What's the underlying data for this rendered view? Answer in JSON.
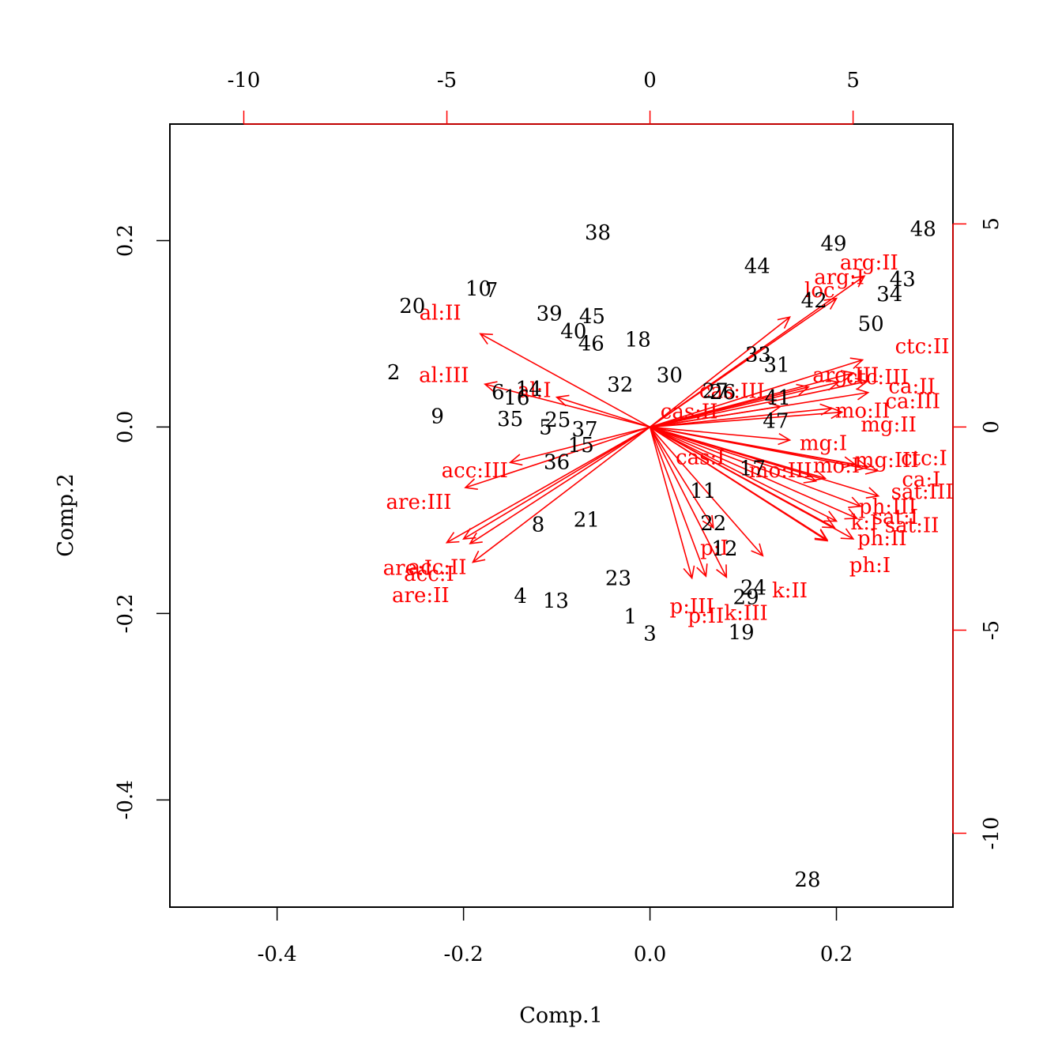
{
  "chart_data": {
    "type": "scatter",
    "subtype": "biplot",
    "xlabel": "Comp.1",
    "ylabel": "Comp.2",
    "xlim": [
      -0.515,
      0.325
    ],
    "ylim": [
      -0.515,
      0.325
    ],
    "x_ticks": [
      -0.4,
      -0.2,
      0.0,
      0.2
    ],
    "x_tick_labels": [
      "-0.4",
      "-0.2",
      "0.0",
      "0.2"
    ],
    "y_ticks": [
      -0.4,
      -0.2,
      0.0,
      0.2
    ],
    "y_tick_labels": [
      "-0.4",
      "-0.2",
      "0.0",
      "0.2"
    ],
    "top_axis": {
      "ticks": [
        -10,
        -5,
        0,
        5
      ],
      "tick_labels": [
        "-10",
        "-5",
        "0",
        "5"
      ],
      "units_per_primary": 22.95
    },
    "right_axis": {
      "ticks": [
        -10,
        -5,
        0,
        5
      ],
      "tick_labels": [
        "-10",
        "-5",
        "0",
        "5"
      ],
      "units_per_primary": 22.95
    },
    "colors": {
      "observations": "#000000",
      "variables": "#ff0000"
    },
    "observations": [
      {
        "label": "1",
        "x": -0.021,
        "y": -0.204
      },
      {
        "label": "2",
        "x": -0.275,
        "y": 0.058
      },
      {
        "label": "3",
        "x": 0.0,
        "y": -0.222
      },
      {
        "label": "4",
        "x": -0.139,
        "y": -0.182
      },
      {
        "label": "5",
        "x": -0.112,
        "y": -0.001
      },
      {
        "label": "6",
        "x": -0.163,
        "y": 0.037
      },
      {
        "label": "7",
        "x": -0.17,
        "y": 0.146
      },
      {
        "label": "8",
        "x": -0.12,
        "y": -0.105
      },
      {
        "label": "9",
        "x": -0.228,
        "y": 0.011
      },
      {
        "label": "10",
        "x": -0.184,
        "y": 0.148
      },
      {
        "label": "11",
        "x": 0.057,
        "y": -0.069
      },
      {
        "label": "12",
        "x": 0.08,
        "y": -0.131
      },
      {
        "label": "13",
        "x": -0.101,
        "y": -0.187
      },
      {
        "label": "14",
        "x": -0.13,
        "y": 0.04
      },
      {
        "label": "15",
        "x": -0.074,
        "y": -0.02
      },
      {
        "label": "16",
        "x": -0.143,
        "y": 0.031
      },
      {
        "label": "17",
        "x": 0.11,
        "y": -0.045
      },
      {
        "label": "18",
        "x": -0.013,
        "y": 0.093
      },
      {
        "label": "19",
        "x": 0.098,
        "y": -0.221
      },
      {
        "label": "20",
        "x": -0.255,
        "y": 0.129
      },
      {
        "label": "21",
        "x": -0.068,
        "y": -0.1
      },
      {
        "label": "22",
        "x": 0.068,
        "y": -0.104
      },
      {
        "label": "23",
        "x": -0.034,
        "y": -0.163
      },
      {
        "label": "24",
        "x": 0.111,
        "y": -0.173
      },
      {
        "label": "25",
        "x": -0.099,
        "y": 0.007
      },
      {
        "label": "26",
        "x": 0.078,
        "y": 0.037
      },
      {
        "label": "27",
        "x": 0.07,
        "y": 0.038
      },
      {
        "label": "28",
        "x": 0.169,
        "y": -0.486
      },
      {
        "label": "29",
        "x": 0.103,
        "y": -0.183
      },
      {
        "label": "30",
        "x": 0.021,
        "y": 0.055
      },
      {
        "label": "31",
        "x": 0.136,
        "y": 0.066
      },
      {
        "label": "32",
        "x": -0.032,
        "y": 0.045
      },
      {
        "label": "33",
        "x": 0.116,
        "y": 0.077
      },
      {
        "label": "34",
        "x": 0.257,
        "y": 0.142
      },
      {
        "label": "35",
        "x": -0.15,
        "y": 0.008
      },
      {
        "label": "36",
        "x": -0.1,
        "y": -0.038
      },
      {
        "label": "37",
        "x": -0.07,
        "y": -0.003
      },
      {
        "label": "38",
        "x": -0.056,
        "y": 0.208
      },
      {
        "label": "39",
        "x": -0.108,
        "y": 0.121
      },
      {
        "label": "40",
        "x": -0.082,
        "y": 0.102
      },
      {
        "label": "41",
        "x": 0.137,
        "y": 0.031
      },
      {
        "label": "42",
        "x": 0.176,
        "y": 0.135
      },
      {
        "label": "43",
        "x": 0.271,
        "y": 0.158
      },
      {
        "label": "44",
        "x": 0.115,
        "y": 0.172
      },
      {
        "label": "45",
        "x": -0.062,
        "y": 0.118
      },
      {
        "label": "46",
        "x": -0.063,
        "y": 0.089
      },
      {
        "label": "47",
        "x": 0.135,
        "y": 0.006
      },
      {
        "label": "48",
        "x": 0.293,
        "y": 0.212
      },
      {
        "label": "49",
        "x": 0.197,
        "y": 0.196
      },
      {
        "label": "50",
        "x": 0.237,
        "y": 0.11
      }
    ],
    "variables": [
      {
        "label": "al:II",
        "x": -0.182,
        "y": 0.1,
        "lx": -0.225,
        "ly": 0.122
      },
      {
        "label": "al:III",
        "x": -0.177,
        "y": 0.046,
        "lx": -0.221,
        "ly": 0.055
      },
      {
        "label": "al:I",
        "x": -0.1,
        "y": 0.032,
        "lx": -0.124,
        "ly": 0.039
      },
      {
        "label": "acc:III",
        "x": -0.15,
        "y": -0.038,
        "lx": -0.188,
        "ly": -0.047
      },
      {
        "label": "are:III",
        "x": -0.198,
        "y": -0.065,
        "lx": -0.248,
        "ly": -0.081
      },
      {
        "label": "acc:II",
        "x": -0.2,
        "y": -0.12,
        "lx": -0.228,
        "ly": -0.151
      },
      {
        "label": "are:I",
        "x": -0.218,
        "y": -0.124,
        "lx": -0.26,
        "ly": -0.152
      },
      {
        "label": "acc:I",
        "x": -0.193,
        "y": -0.125,
        "lx": -0.237,
        "ly": -0.158
      },
      {
        "label": "are:II",
        "x": -0.19,
        "y": -0.145,
        "lx": -0.246,
        "ly": -0.181
      },
      {
        "label": "arg:II",
        "x": 0.23,
        "y": 0.162,
        "lx": 0.235,
        "ly": 0.176
      },
      {
        "label": "arg:I",
        "x": 0.2,
        "y": 0.138,
        "lx": 0.203,
        "ly": 0.16
      },
      {
        "label": "loc",
        "x": 0.15,
        "y": 0.118,
        "lx": 0.182,
        "ly": 0.146
      },
      {
        "label": "ctc:II",
        "x": 0.228,
        "y": 0.072,
        "lx": 0.292,
        "ly": 0.086
      },
      {
        "label": "arg:III",
        "x": 0.202,
        "y": 0.048,
        "lx": 0.21,
        "ly": 0.055
      },
      {
        "label": "ctc:III",
        "x": 0.218,
        "y": 0.058,
        "lx": 0.244,
        "ly": 0.053
      },
      {
        "label": "ca:II",
        "x": 0.233,
        "y": 0.049,
        "lx": 0.281,
        "ly": 0.043
      },
      {
        "label": "ca:III",
        "x": 0.234,
        "y": 0.037,
        "lx": 0.282,
        "ly": 0.027
      },
      {
        "label": "mo:II",
        "x": 0.195,
        "y": 0.02,
        "lx": 0.228,
        "ly": 0.017
      },
      {
        "label": "mg:II",
        "x": 0.206,
        "y": 0.016,
        "lx": 0.256,
        "ly": 0.002
      },
      {
        "label": "cas:III",
        "x": 0.17,
        "y": 0.043,
        "lx": 0.088,
        "ly": 0.038
      },
      {
        "label": "cas:II",
        "x": 0.14,
        "y": 0.022,
        "lx": 0.042,
        "ly": 0.016
      },
      {
        "label": "mg:I",
        "x": 0.15,
        "y": -0.014,
        "lx": 0.186,
        "ly": -0.018
      },
      {
        "label": "mo:I",
        "x": 0.22,
        "y": -0.04,
        "lx": 0.2,
        "ly": -0.042
      },
      {
        "label": "mg:III",
        "x": 0.234,
        "y": -0.043,
        "lx": 0.254,
        "ly": -0.036
      },
      {
        "label": "ctc:I",
        "x": 0.244,
        "y": -0.047,
        "lx": 0.294,
        "ly": -0.034
      },
      {
        "label": "cas:I",
        "x": 0.188,
        "y": -0.055,
        "lx": 0.054,
        "ly": -0.033
      },
      {
        "label": "mo:III",
        "x": 0.178,
        "y": -0.058,
        "lx": 0.14,
        "ly": -0.047
      },
      {
        "label": "ca:I",
        "x": 0.245,
        "y": -0.074,
        "lx": 0.291,
        "ly": -0.057
      },
      {
        "label": "sat:III",
        "x": 0.226,
        "y": -0.085,
        "lx": 0.292,
        "ly": -0.07
      },
      {
        "label": "ph:III",
        "x": 0.222,
        "y": -0.098,
        "lx": 0.255,
        "ly": -0.086
      },
      {
        "label": "sat:I",
        "x": 0.2,
        "y": -0.101,
        "lx": 0.263,
        "ly": -0.097
      },
      {
        "label": "k:I",
        "x": 0.198,
        "y": -0.108,
        "lx": 0.23,
        "ly": -0.103
      },
      {
        "label": "sat:II",
        "x": 0.218,
        "y": -0.12,
        "lx": 0.281,
        "ly": -0.106
      },
      {
        "label": "ph:II",
        "x": 0.19,
        "y": -0.121,
        "lx": 0.249,
        "ly": -0.12
      },
      {
        "label": "ph:I",
        "x": 0.19,
        "y": -0.122,
        "lx": 0.236,
        "ly": -0.149
      },
      {
        "label": "p:I",
        "x": 0.068,
        "y": -0.108,
        "lx": 0.069,
        "ly": -0.13
      },
      {
        "label": "k:II",
        "x": 0.121,
        "y": -0.138,
        "lx": 0.15,
        "ly": -0.176
      },
      {
        "label": "p:III",
        "x": 0.045,
        "y": -0.162,
        "lx": 0.045,
        "ly": -0.193
      },
      {
        "label": "p:II",
        "x": 0.06,
        "y": -0.16,
        "lx": 0.06,
        "ly": -0.203
      },
      {
        "label": "k:III",
        "x": 0.082,
        "y": -0.161,
        "lx": 0.103,
        "ly": -0.2
      }
    ]
  }
}
